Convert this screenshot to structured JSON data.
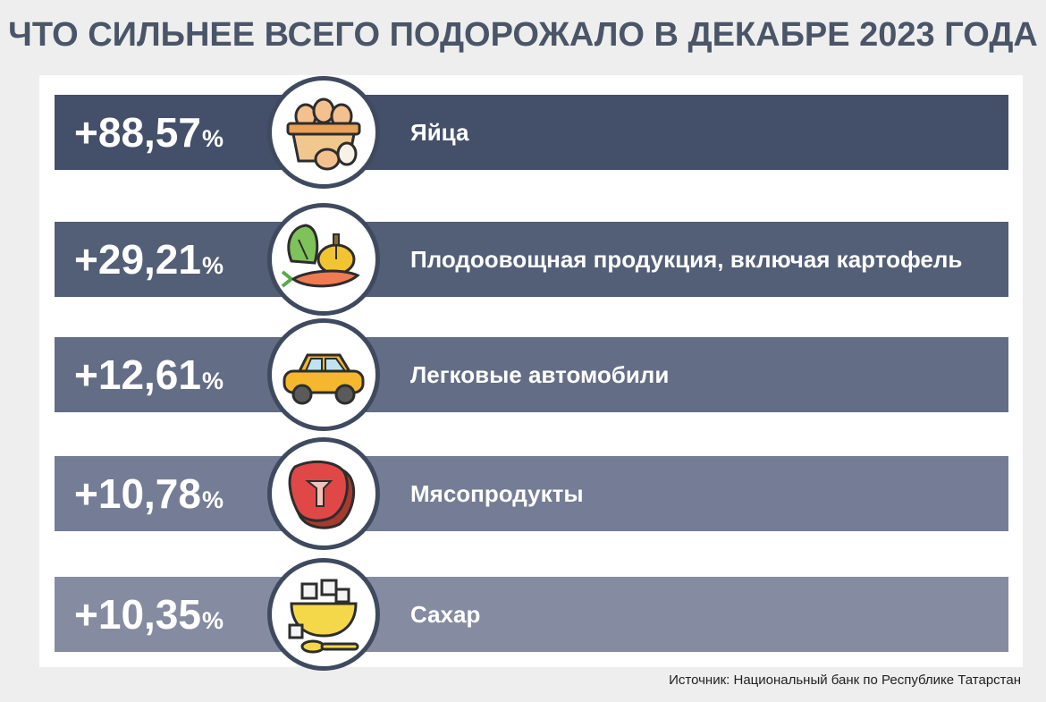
{
  "title": "ЧТО СИЛЬНЕЕ ВСЕГО ПОДОРОЖАЛО В ДЕКАБРЕ 2023 ГОДА",
  "source": "Источник: Национальный банк по Республике Татарстан",
  "colors": {
    "row_1": "#44506a",
    "row_2": "#535e77",
    "row_3": "#646d86",
    "row_4": "#747d95",
    "row_5": "#858ba1",
    "circle_border": "#3f4a5f"
  },
  "chart_data": {
    "type": "bar",
    "title": "ЧТО СИЛЬНЕЕ ВСЕГО ПОДОРОЖАЛО В ДЕКАБРЕ 2023 ГОДА",
    "categories": [
      "Яйца",
      "Плодоовощная продукция, включая картофель",
      "Легковые автомобили",
      "Мясопродукты",
      "Сахар"
    ],
    "values": [
      88.57,
      29.21,
      12.61,
      10.78,
      10.35
    ],
    "value_labels": [
      "+88,57",
      "+29,21",
      "+12,61",
      "+10,78",
      "+10,35"
    ],
    "unit": "%",
    "icons": [
      "eggs-basket-icon",
      "vegetables-icon",
      "car-icon",
      "meat-steak-icon",
      "sugar-bowl-icon"
    ]
  }
}
